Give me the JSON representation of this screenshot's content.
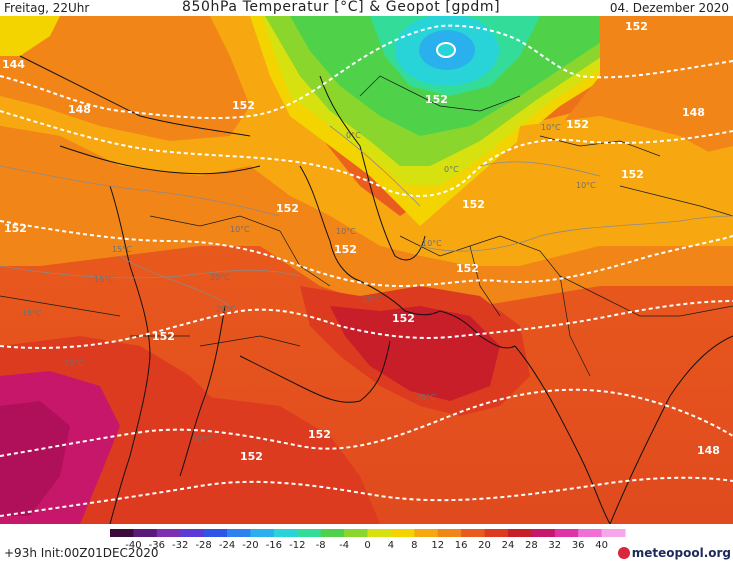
{
  "header": {
    "time_label": "Freitag, 22Uhr",
    "title": "850hPa Temperatur [°C] & Geopot [gpdm]",
    "date": "04. Dezember 2020"
  },
  "footer": {
    "run_info": "+93h  Init:00Z01DEC2020",
    "brand": "meteopool.org"
  },
  "legend": {
    "ticks": [
      "-40",
      "-36",
      "-32",
      "-28",
      "-24",
      "-20",
      "-16",
      "-12",
      "-8",
      "-4",
      "0",
      "4",
      "8",
      "12",
      "16",
      "20",
      "24",
      "28",
      "32",
      "36",
      "40"
    ],
    "colors": [
      "#3a0a3a",
      "#5a1a7a",
      "#7d2fb0",
      "#5b3bd8",
      "#2f55e8",
      "#2c83f0",
      "#2bb0ee",
      "#29d4d8",
      "#33dd99",
      "#4fd24a",
      "#8ad62c",
      "#d6e10f",
      "#f4d400",
      "#f7a810",
      "#f28518",
      "#ea5c1d",
      "#dc3b1f",
      "#c81e2a",
      "#c6176a",
      "#dd32a8",
      "#f070d5",
      "#f6a7ea"
    ]
  },
  "map": {
    "geopotential_labels": [
      {
        "id": "144-nw",
        "text": "144"
      },
      {
        "id": "148-w",
        "text": "148"
      },
      {
        "id": "152-n",
        "text": "152"
      },
      {
        "id": "152-north-low",
        "text": "152"
      },
      {
        "id": "152-nne",
        "text": "152"
      },
      {
        "id": "152-ne",
        "text": "152"
      },
      {
        "id": "148-ne",
        "text": "148"
      },
      {
        "id": "152-e",
        "text": "152"
      },
      {
        "id": "152-iran-1",
        "text": "152"
      },
      {
        "id": "152-iran-2",
        "text": "152"
      },
      {
        "id": "152-iran-3",
        "text": "152"
      },
      {
        "id": "152-iran-4",
        "text": "152"
      },
      {
        "id": "152-west",
        "text": "152"
      },
      {
        "id": "152-arabia",
        "text": "152"
      },
      {
        "id": "152-gulf",
        "text": "152"
      },
      {
        "id": "152-south-1",
        "text": "152"
      },
      {
        "id": "152-south-2",
        "text": "152"
      },
      {
        "id": "148-se",
        "text": "148"
      }
    ],
    "temperature_labels": [
      {
        "id": "t-10-west",
        "text": "10°C"
      },
      {
        "id": "t-10-iran",
        "text": "10°C"
      },
      {
        "id": "t-10-afg",
        "text": "10°C"
      },
      {
        "id": "t-15-west",
        "text": "15°C"
      },
      {
        "id": "t-15-north",
        "text": "15°C"
      },
      {
        "id": "t-18-west",
        "text": "18°C"
      },
      {
        "id": "t-20-west",
        "text": "20°C"
      },
      {
        "id": "t-20-arabia",
        "text": "20°C"
      },
      {
        "id": "t-20-gulf",
        "text": "20°C"
      },
      {
        "id": "t-20-south",
        "text": "20°C"
      },
      {
        "id": "t-20-se",
        "text": "20°C"
      },
      {
        "id": "t-20-sw",
        "text": "20°C"
      },
      {
        "id": "t-0-north",
        "text": "0°C"
      },
      {
        "id": "t-10-ne",
        "text": "10°C"
      },
      {
        "id": "t-10-e",
        "text": "10°C"
      },
      {
        "id": "t-0-e",
        "text": "0°C"
      }
    ]
  }
}
